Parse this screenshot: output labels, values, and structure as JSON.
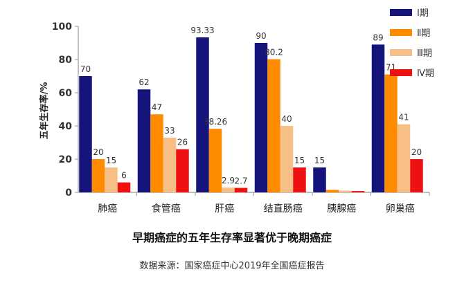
{
  "chart_data": {
    "type": "bar",
    "title": "早期癌症的五年生存率显著优于晚期癌症",
    "source": "数据来源：国家癌症中心2019年全国癌症报告",
    "ylabel": "五年生存率/%",
    "xlabel": "",
    "ylim": [
      0,
      100
    ],
    "yticks": [
      0,
      20,
      40,
      60,
      80,
      100
    ],
    "categories": [
      "肺癌",
      "食管癌",
      "肝癌",
      "结直肠癌",
      "胰腺癌",
      "卵巢癌"
    ],
    "legend_position": "top-right",
    "series": [
      {
        "name": "Ⅰ期",
        "color": "#14147a",
        "values": [
          70,
          62,
          93.33,
          90,
          15,
          89
        ],
        "labels": [
          "70",
          "62",
          "93.33",
          "90",
          "15",
          "89"
        ]
      },
      {
        "name": "Ⅱ期",
        "color": "#ff8c00",
        "values": [
          20,
          47,
          38.26,
          80.2,
          1.5,
          71
        ],
        "labels": [
          "20",
          "47",
          "38.26",
          "80.2",
          "",
          "71"
        ]
      },
      {
        "name": "Ⅲ期",
        "color": "#f7bf86",
        "values": [
          15,
          33,
          2.9,
          40,
          1,
          41
        ],
        "labels": [
          "15",
          "33",
          "2.9",
          "40",
          "",
          "41"
        ]
      },
      {
        "name": "Ⅳ期",
        "color": "#ee1111",
        "values": [
          6,
          26,
          2.7,
          15,
          0.8,
          20
        ],
        "labels": [
          "6",
          "26",
          "2.7",
          "15",
          "",
          "20"
        ]
      }
    ]
  }
}
